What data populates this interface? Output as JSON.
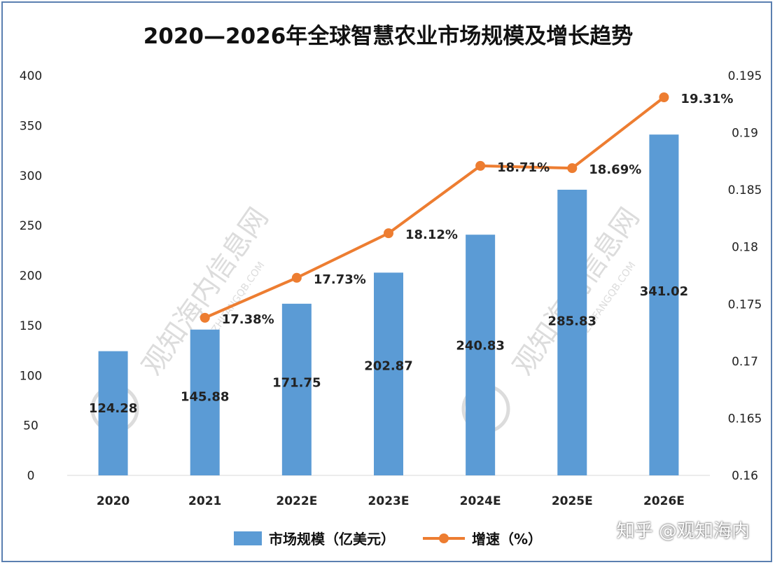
{
  "chart_data": {
    "type": "bar",
    "title": "2020—2026年全球智慧农业市场规模及增长趋势",
    "categories": [
      "2020",
      "2021",
      "2022E",
      "2023E",
      "2024E",
      "2025E",
      "2026E"
    ],
    "series": [
      {
        "name": "市场规模（亿美元）",
        "type": "bar",
        "axis": "left",
        "color": "#5b9bd5",
        "values": [
          124.28,
          145.88,
          171.75,
          202.87,
          240.83,
          285.83,
          341.02
        ],
        "labels": [
          "124.28",
          "145.88",
          "171.75",
          "202.87",
          "240.83",
          "285.83",
          "341.02"
        ]
      },
      {
        "name": "增速（%）",
        "type": "line",
        "axis": "right",
        "color": "#ed7d31",
        "values": [
          null,
          0.1738,
          0.1773,
          0.1812,
          0.1871,
          0.1869,
          0.1931
        ],
        "labels": [
          "",
          "17.38%",
          "17.73%",
          "18.12%",
          "18.71%",
          "18.69%",
          "19.31%"
        ]
      }
    ],
    "y_left": {
      "min": 0,
      "max": 400,
      "ticks": [
        "0",
        "50",
        "100",
        "150",
        "200",
        "250",
        "300",
        "350",
        "400"
      ]
    },
    "y_right": {
      "min": 0.16,
      "max": 0.195,
      "ticks": [
        "0.16",
        "0.165",
        "0.17",
        "0.175",
        "0.18",
        "0.185",
        "0.19",
        "0.195"
      ]
    },
    "grid": false,
    "legend_position": "bottom"
  },
  "watermark": "观知海内信息网",
  "watermark_url": "GUANZHIFANGQB.COM",
  "credit": "知乎 @观知海内"
}
